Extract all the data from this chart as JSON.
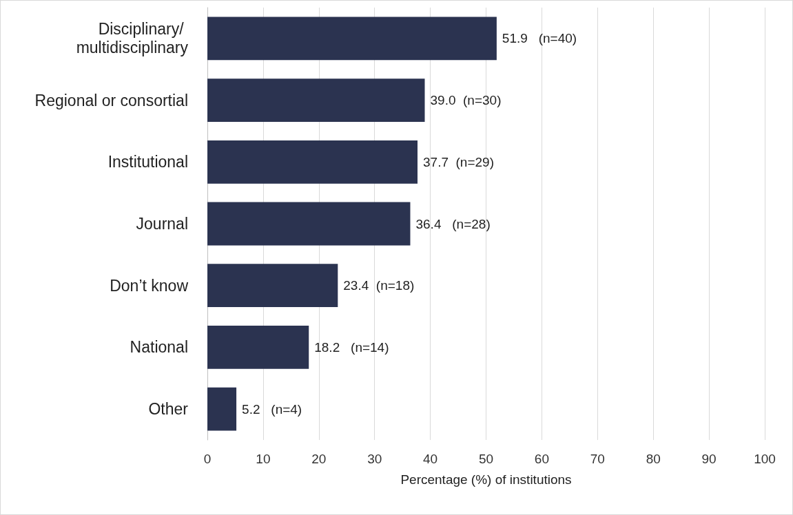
{
  "chart_data": {
    "type": "bar",
    "orientation": "horizontal",
    "categories": [
      "Disciplinary/ multidisciplinary",
      "Regional or consortial",
      "Institutional",
      "Journal",
      "Don’t know",
      "National",
      "Other"
    ],
    "values": [
      51.9,
      39.0,
      37.7,
      36.4,
      23.4,
      18.2,
      5.2
    ],
    "value_labels": [
      "51.9   (n=40)",
      "39.0  (n=30)",
      "37.7  (n=29)",
      "36.4   (n=28)",
      "23.4  (n=18)",
      "18.2   (n=14)",
      "5.2   (n=4)"
    ],
    "color": "#2b3350",
    "xlabel": "Percentage (%) of institutions",
    "xlim": [
      0,
      100
    ],
    "xticks": [
      0,
      10,
      20,
      30,
      40,
      50,
      60,
      70,
      80,
      90,
      100
    ],
    "grid": "x"
  }
}
